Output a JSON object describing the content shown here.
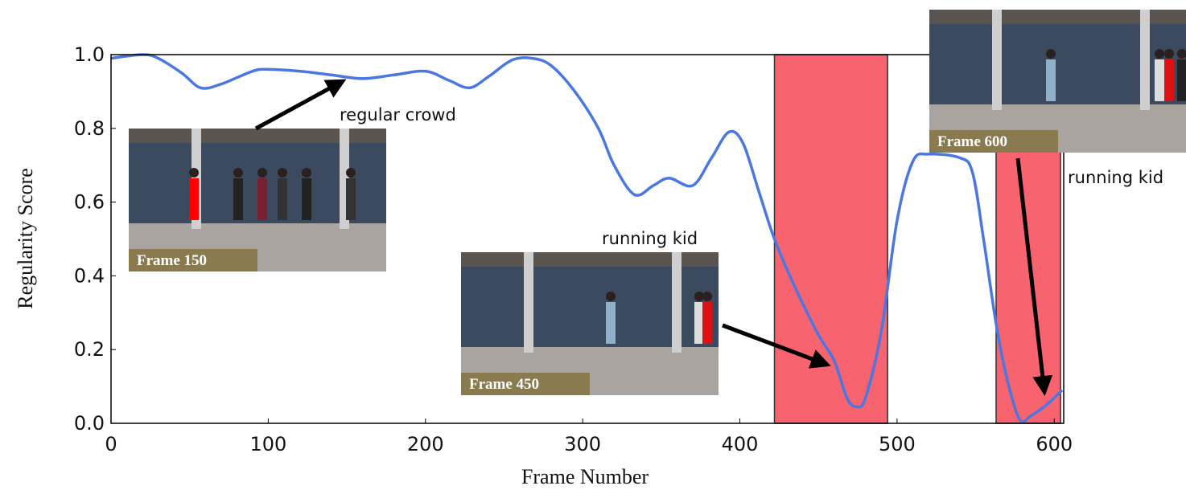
{
  "chart_data": {
    "type": "line",
    "xlabel": "Frame Number",
    "ylabel": "Regularity Score",
    "xlim": [
      0,
      606
    ],
    "ylim": [
      0,
      1
    ],
    "xticks": [
      0,
      100,
      200,
      300,
      400,
      500,
      600
    ],
    "yticks": [
      {
        "value": 0,
        "label": "0.0"
      },
      {
        "value": 0.2,
        "label": "0.2"
      },
      {
        "value": 0.4,
        "label": "0.4"
      },
      {
        "value": 0.6,
        "label": "0.6"
      },
      {
        "value": 0.8,
        "label": "0.8"
      },
      {
        "value": 1,
        "label": "1.0"
      }
    ],
    "regions": [
      {
        "start": 422,
        "end": 494
      },
      {
        "start": 563,
        "end": 604
      }
    ],
    "region_color": "#f7636f",
    "series": [
      {
        "color": "#4a78e0",
        "x": [
          0,
          20,
          30,
          45,
          57,
          70,
          90,
          100,
          120,
          140,
          160,
          180,
          200,
          215,
          228,
          240,
          255,
          268,
          280,
          295,
          310,
          320,
          333,
          345,
          355,
          370,
          382,
          393,
          402,
          412,
          422,
          435,
          450,
          460,
          468,
          474,
          480,
          490,
          500,
          510,
          520,
          540,
          548,
          555,
          563,
          570,
          578,
          585,
          595,
          605
        ],
        "values": [
          0.99,
          1.0,
          0.99,
          0.95,
          0.91,
          0.92,
          0.955,
          0.96,
          0.955,
          0.945,
          0.935,
          0.945,
          0.955,
          0.93,
          0.91,
          0.94,
          0.985,
          0.99,
          0.97,
          0.9,
          0.8,
          0.7,
          0.62,
          0.645,
          0.665,
          0.645,
          0.72,
          0.79,
          0.76,
          0.63,
          0.5,
          0.37,
          0.24,
          0.17,
          0.07,
          0.045,
          0.07,
          0.25,
          0.55,
          0.71,
          0.73,
          0.72,
          0.68,
          0.5,
          0.27,
          0.12,
          0.01,
          0.02,
          0.05,
          0.09
        ]
      }
    ],
    "annotations": [
      "regular crowd",
      "running kid",
      "running kid"
    ],
    "insets": [
      "Frame 150",
      "Frame 450",
      "Frame 600"
    ]
  }
}
